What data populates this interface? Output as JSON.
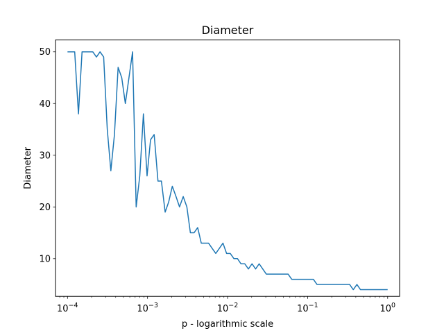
{
  "chart_data": {
    "type": "line",
    "title": "Diameter",
    "xlabel": "p - logarithmic scale",
    "ylabel": "Diameter",
    "xscale": "log",
    "xlim": [
      7.08e-05,
      1.41
    ],
    "ylim": [
      2.7,
      52.3
    ],
    "grid": false,
    "color": "#1f77b4",
    "xticks": [
      {
        "value": 0.0001,
        "mantissa": "10",
        "exponent": "−4"
      },
      {
        "value": 0.001,
        "mantissa": "10",
        "exponent": "−3"
      },
      {
        "value": 0.01,
        "mantissa": "10",
        "exponent": "−2"
      },
      {
        "value": 0.1,
        "mantissa": "10",
        "exponent": "−1"
      },
      {
        "value": 1,
        "mantissa": "10",
        "exponent": "0"
      }
    ],
    "yticks": [
      10,
      20,
      30,
      40,
      50
    ],
    "x": [
      0.0001,
      0.000111,
      0.000123,
      0.000137,
      0.000152,
      0.000168,
      0.000187,
      0.000207,
      0.00023,
      0.000255,
      0.000283,
      0.000314,
      0.000348,
      0.000386,
      0.000429,
      0.000476,
      0.000528,
      0.000586,
      0.00065,
      0.000721,
      0.0008,
      0.000888,
      0.000986,
      0.00109,
      0.00121,
      0.00135,
      0.00149,
      0.00166,
      0.00184,
      0.00204,
      0.00227,
      0.00251,
      0.00279,
      0.0031,
      0.00343,
      0.00381,
      0.00423,
      0.00469,
      0.00521,
      0.00578,
      0.00641,
      0.00712,
      0.0079,
      0.00876,
      0.00972,
      0.0108,
      0.012,
      0.0133,
      0.0147,
      0.0164,
      0.0182,
      0.0202,
      0.0224,
      0.0248,
      0.0275,
      0.0305,
      0.0339,
      0.0376,
      0.0418,
      0.0463,
      0.0514,
      0.0571,
      0.0633,
      0.0703,
      0.078,
      0.0866,
      0.0961,
      0.107,
      0.118,
      0.131,
      0.146,
      0.162,
      0.179,
      0.199,
      0.221,
      0.245,
      0.272,
      0.302,
      0.335,
      0.372,
      0.413,
      0.458,
      0.508,
      0.564,
      0.626,
      0.695,
      0.771,
      0.855,
      0.949,
      1.0
    ],
    "y": [
      50,
      50,
      50,
      38,
      50,
      50,
      50,
      50,
      49,
      50,
      49,
      35,
      27,
      34,
      47,
      45,
      40,
      45,
      50,
      20,
      26,
      38,
      26,
      33,
      34,
      25,
      25,
      19,
      21,
      24,
      22,
      20,
      22,
      20,
      15,
      15,
      16,
      13,
      13,
      13,
      12,
      11,
      12,
      13,
      11,
      11,
      10,
      10,
      9,
      9,
      8,
      9,
      8,
      9,
      8,
      7,
      7,
      7,
      7,
      7,
      7,
      7,
      6,
      6,
      6,
      6,
      6,
      6,
      6,
      5,
      5,
      5,
      5,
      5,
      5,
      5,
      5,
      5,
      5,
      4,
      5,
      4,
      4,
      4,
      4,
      4,
      4,
      4,
      4,
      4
    ]
  }
}
